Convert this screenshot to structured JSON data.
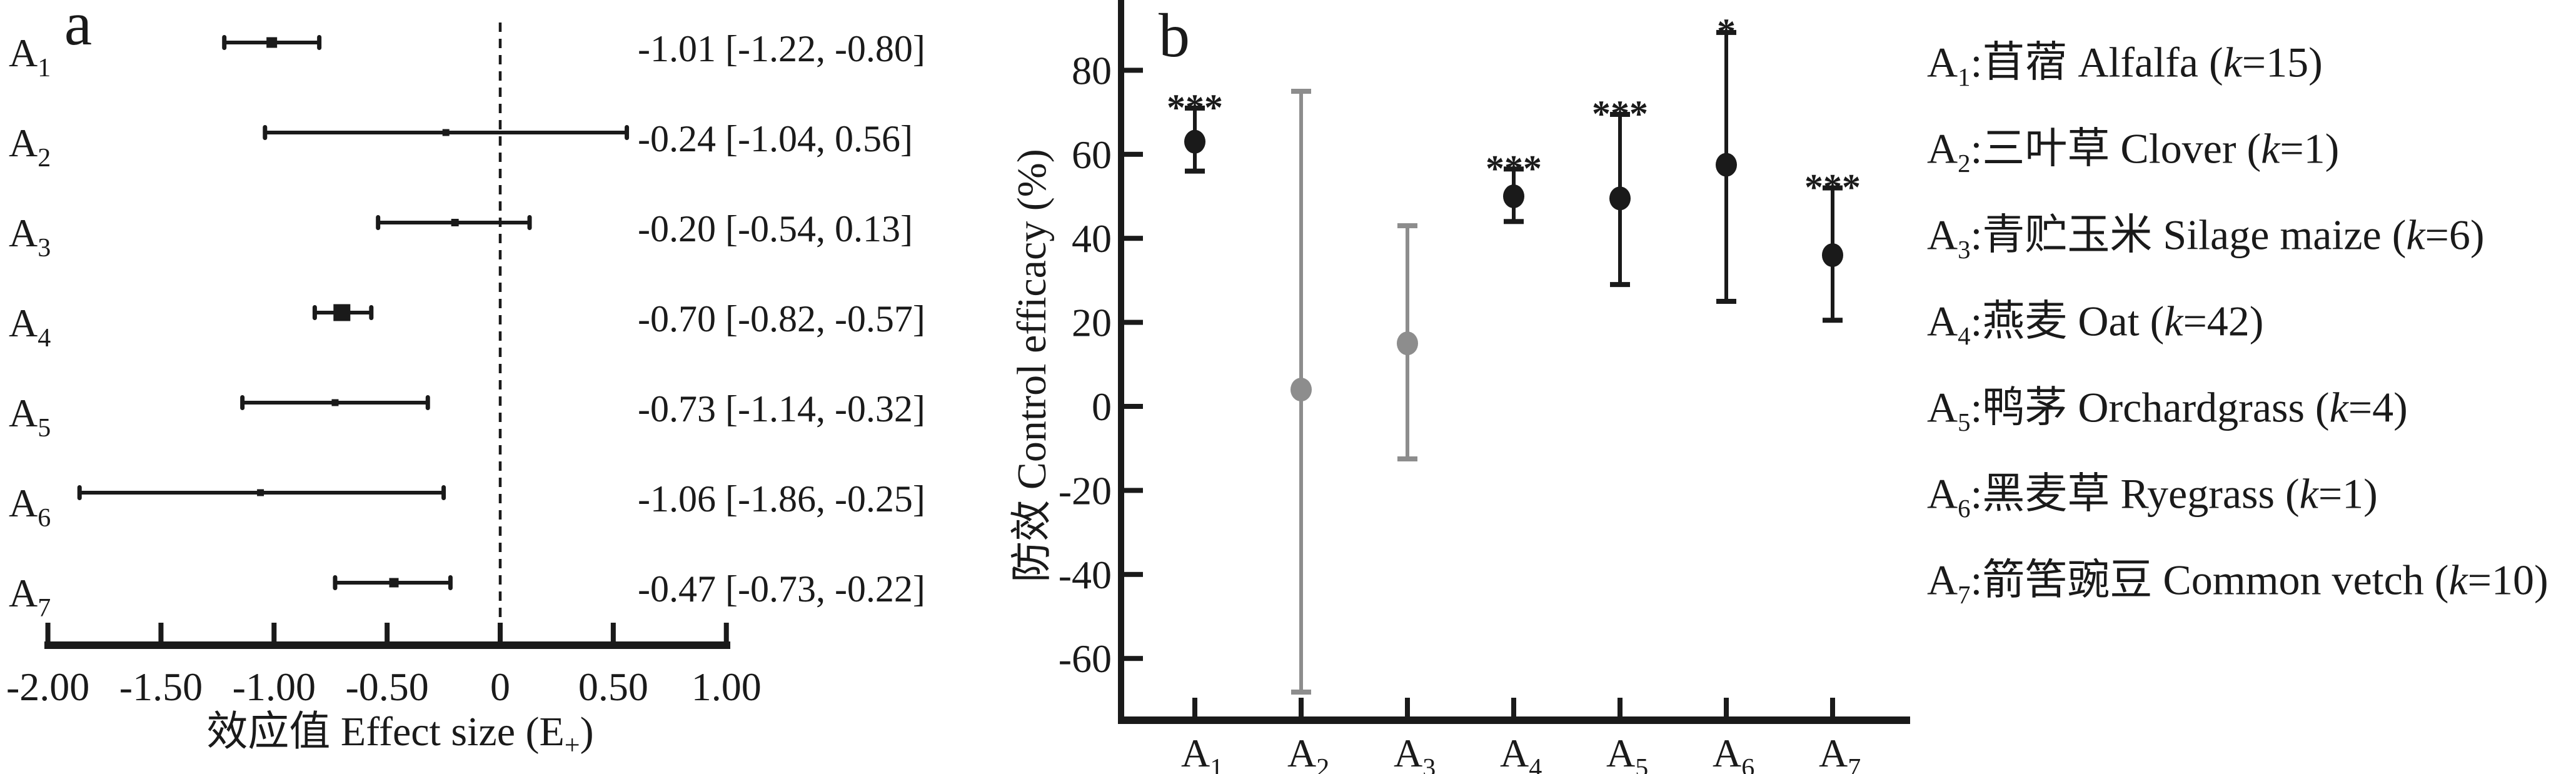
{
  "figure": {
    "background": "#ffffff",
    "ink_color": "#1a1a1a",
    "gray_color": "#8d8d8d"
  },
  "chart_data": [
    {
      "panel": "a",
      "type": "forest",
      "xlabel_prefix": "效应值 Effect size (E",
      "xlabel_sub": "+",
      "xlabel_suffix": ")",
      "xlim": [
        -2.03,
        1.02
      ],
      "zero_line": 0,
      "grid": "off",
      "x_ticks": [
        {
          "v": -2.0,
          "label": "-2.00"
        },
        {
          "v": -1.5,
          "label": "-1.50"
        },
        {
          "v": -1.0,
          "label": "-1.00"
        },
        {
          "v": -0.5,
          "label": "-0.50"
        },
        {
          "v": 0.0,
          "label": "0"
        },
        {
          "v": 0.5,
          "label": "0.50"
        },
        {
          "v": 1.0,
          "label": "1.00"
        }
      ],
      "rows": [
        {
          "base": "A",
          "sub": "1",
          "est": -1.01,
          "lo": -1.22,
          "hi": -0.8,
          "text": "-1.01 [-1.22, -0.80]",
          "marker_size": 17
        },
        {
          "base": "A",
          "sub": "2",
          "est": -0.24,
          "lo": -1.04,
          "hi": 0.56,
          "text": "-0.24 [-1.04, 0.56]",
          "marker_size": 11
        },
        {
          "base": "A",
          "sub": "3",
          "est": -0.2,
          "lo": -0.54,
          "hi": 0.13,
          "text": "-0.20 [-0.54, 0.13]",
          "marker_size": 12
        },
        {
          "base": "A",
          "sub": "4",
          "est": -0.7,
          "lo": -0.82,
          "hi": -0.57,
          "text": "-0.70 [-0.82, -0.57]",
          "marker_size": 27
        },
        {
          "base": "A",
          "sub": "5",
          "est": -0.73,
          "lo": -1.14,
          "hi": -0.32,
          "text": "-0.73 [-1.14, -0.32]",
          "marker_size": 11
        },
        {
          "base": "A",
          "sub": "6",
          "est": -1.06,
          "lo": -1.86,
          "hi": -0.25,
          "text": "-1.06 [-1.86, -0.25]",
          "marker_size": 11
        },
        {
          "base": "A",
          "sub": "7",
          "est": -0.47,
          "lo": -0.73,
          "hi": -0.22,
          "text": "-0.47 [-0.73, -0.22]",
          "marker_size": 15
        }
      ]
    },
    {
      "panel": "b",
      "type": "scatter-errorbar",
      "ylabel": "防效 Control efficacy (%)",
      "ylim": [
        -75,
        96
      ],
      "grid": "off",
      "y_ticks": [
        {
          "v": 80,
          "label": "80"
        },
        {
          "v": 60,
          "label": "60"
        },
        {
          "v": 40,
          "label": "40"
        },
        {
          "v": 20,
          "label": "20"
        },
        {
          "v": 0,
          "label": "0"
        },
        {
          "v": -20,
          "label": "-20"
        },
        {
          "v": -40,
          "label": "-40"
        },
        {
          "v": -60,
          "label": "-60"
        }
      ],
      "categories": [
        {
          "base": "A",
          "sub": "1",
          "est": 63,
          "lo": 56,
          "hi": 71,
          "sig": "***",
          "color": "ink"
        },
        {
          "base": "A",
          "sub": "2",
          "est": 4,
          "lo": -68,
          "hi": 75,
          "sig": "",
          "color": "gray"
        },
        {
          "base": "A",
          "sub": "3",
          "est": 15,
          "lo": -12.5,
          "hi": 43,
          "sig": "",
          "color": "gray"
        },
        {
          "base": "A",
          "sub": "4",
          "est": 50,
          "lo": 44,
          "hi": 56.5,
          "sig": "***",
          "color": "ink"
        },
        {
          "base": "A",
          "sub": "5",
          "est": 49.5,
          "lo": 29,
          "hi": 69.5,
          "sig": "***",
          "color": "ink"
        },
        {
          "base": "A",
          "sub": "6",
          "est": 57.5,
          "lo": 25,
          "hi": 89,
          "sig": "*",
          "color": "ink"
        },
        {
          "base": "A",
          "sub": "7",
          "est": 36,
          "lo": 20.5,
          "hi": 52,
          "sig": "***",
          "color": "ink"
        }
      ]
    }
  ],
  "legend": {
    "items": [
      {
        "base": "A",
        "sub": "1",
        "text": ":苜蓿 Alfalfa (",
        "k": "k",
        "rest": "=15)"
      },
      {
        "base": "A",
        "sub": "2",
        "text": ":三叶草 Clover (",
        "k": "k",
        "rest": "=1)"
      },
      {
        "base": "A",
        "sub": "3",
        "text": ":青贮玉米 Silage maize (",
        "k": "k",
        "rest": "=6)"
      },
      {
        "base": "A",
        "sub": "4",
        "text": ":燕麦 Oat (",
        "k": "k",
        "rest": "=42)"
      },
      {
        "base": "A",
        "sub": "5",
        "text": ":鸭茅 Orchardgrass (",
        "k": "k",
        "rest": "=4)"
      },
      {
        "base": "A",
        "sub": "6",
        "text": ":黑麦草 Ryegrass (",
        "k": "k",
        "rest": "=1)"
      },
      {
        "base": "A",
        "sub": "7",
        "text": ":箭筈豌豆 Common vetch (",
        "k": "k",
        "rest": "=10)"
      }
    ]
  }
}
